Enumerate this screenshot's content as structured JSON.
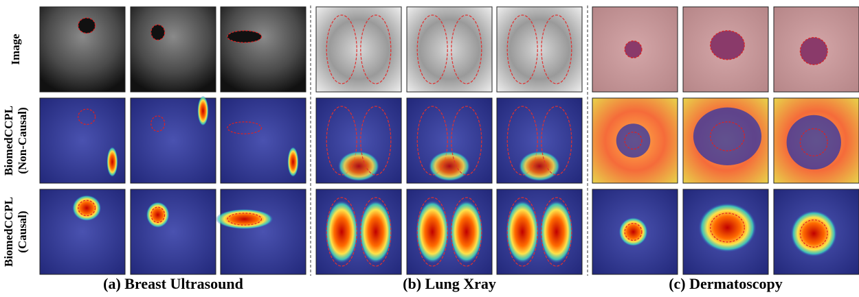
{
  "row_labels": [
    {
      "lines": [
        "Image"
      ]
    },
    {
      "lines": [
        "BiomedCCPL",
        "(Non-Causal)"
      ]
    },
    {
      "lines": [
        "BiomedCCPL",
        "(Causal)"
      ]
    }
  ],
  "captions": [
    "(a) Breast Ultrasound",
    "(b) Lung Xray",
    "(c) Dermatoscopy"
  ]
}
